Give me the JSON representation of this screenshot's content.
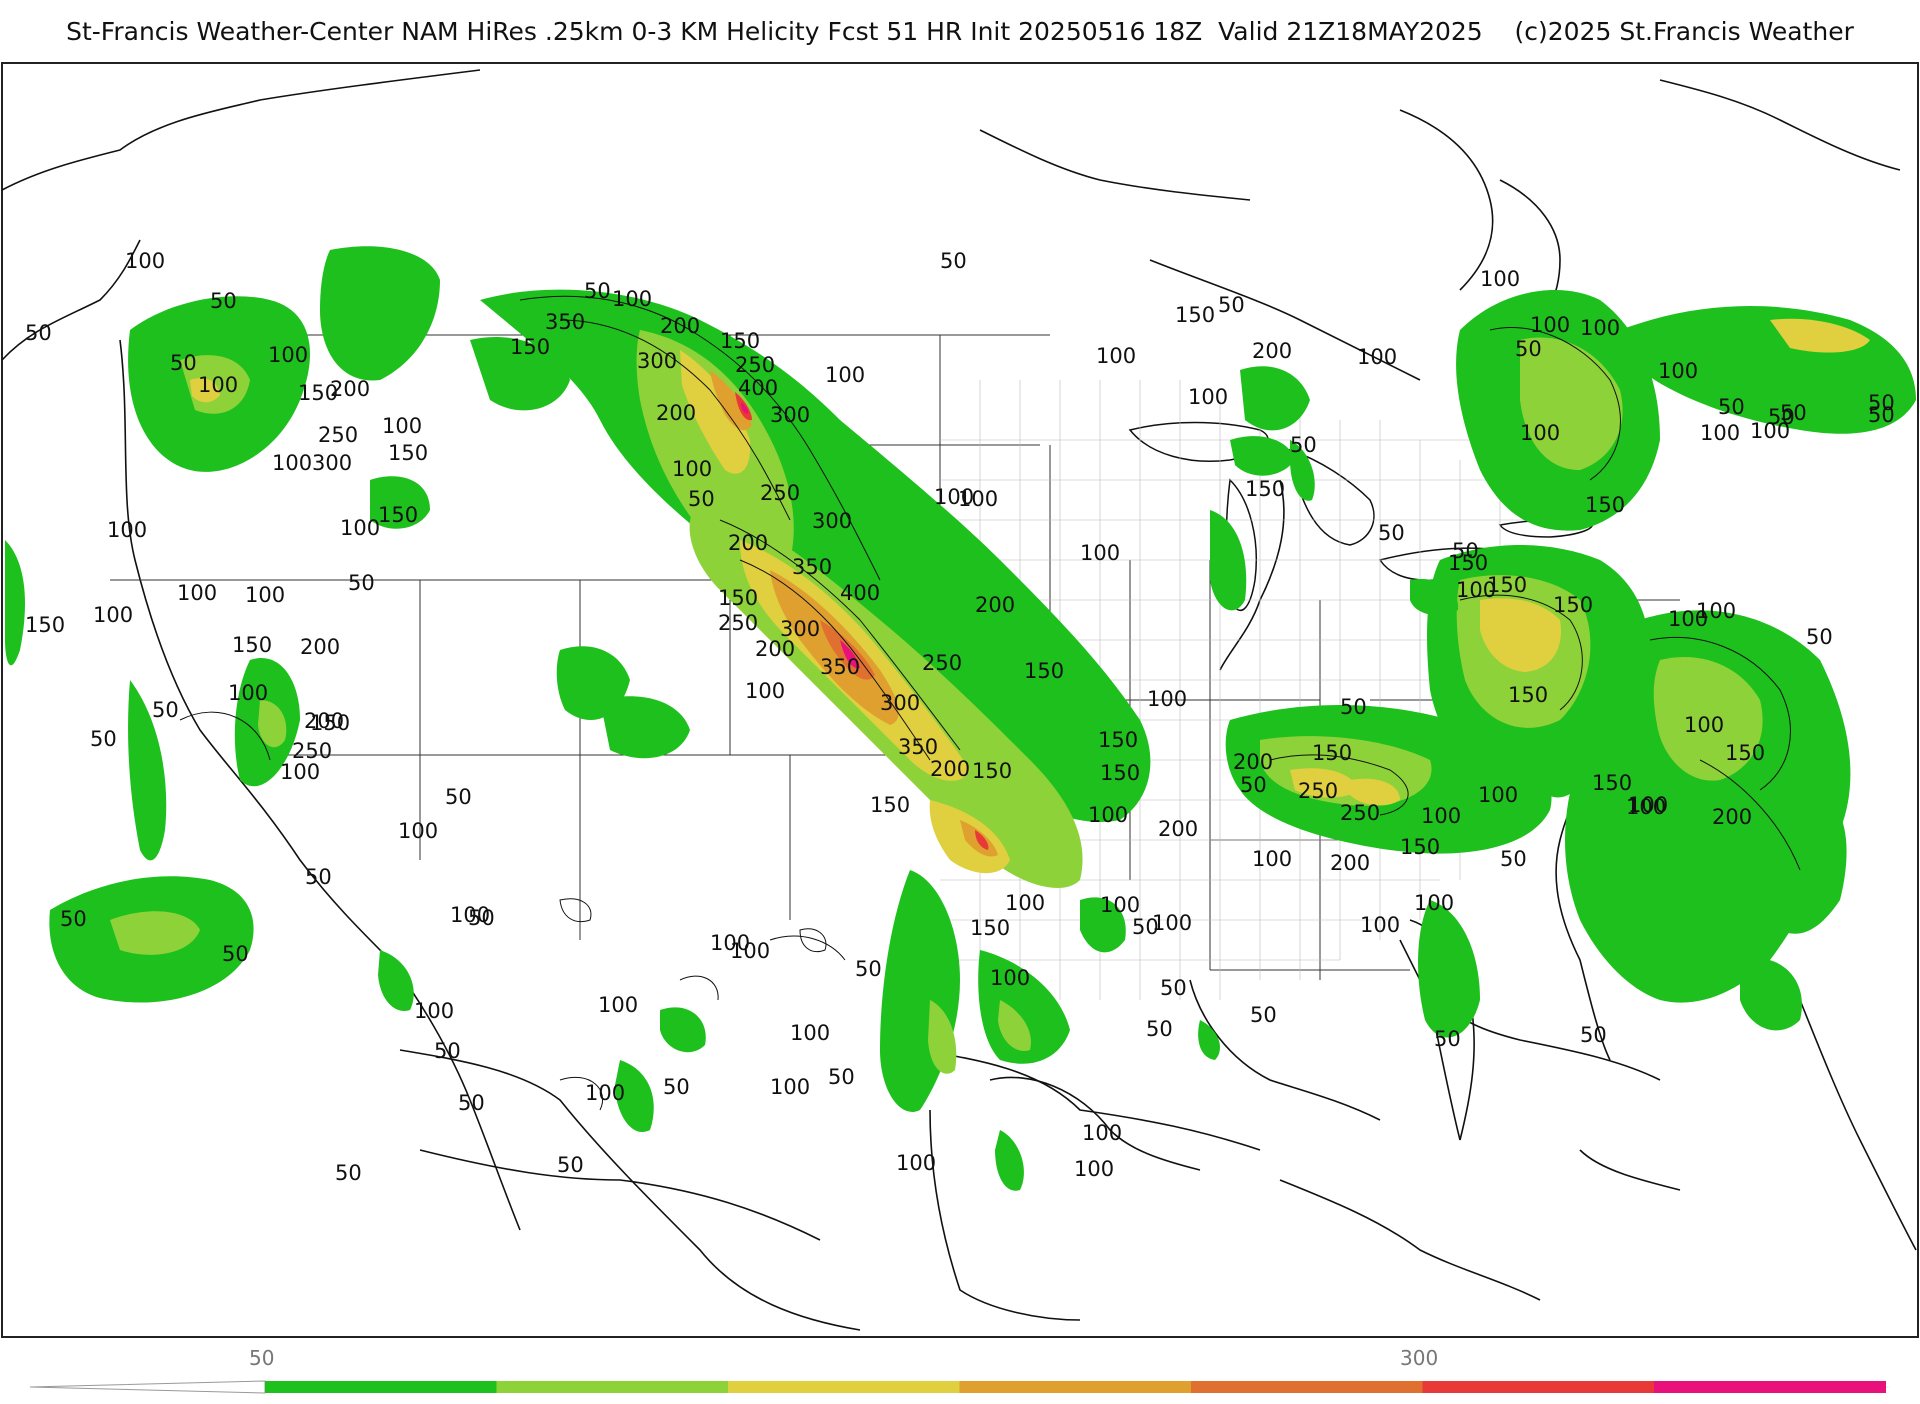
{
  "title": "St-Francis Weather-Center NAM HiRes .25km 0-3 KM Helicity Fcst 51 HR Init 20250516 18Z  Valid 21Z18MAY2025    (c)2025 St.Francis Weather",
  "colorbar": {
    "tick_labels": [
      "50",
      "300"
    ],
    "tick_values": [
      50,
      300
    ],
    "colors": [
      "#ffffff",
      "#1ec01e",
      "#8ed23a",
      "#e0d040",
      "#e0a030",
      "#e07030",
      "#e83838",
      "#e8107a"
    ],
    "bins": [
      0,
      50,
      100,
      150,
      200,
      250,
      300,
      350,
      400
    ]
  },
  "contour_labels": {
    "west": [
      "50",
      "100",
      "50",
      "100",
      "50",
      "100",
      "150",
      "100",
      "150",
      "200",
      "250",
      "300",
      "100",
      "150",
      "100",
      "100",
      "150",
      "100",
      "100",
      "50",
      "150",
      "100",
      "50",
      "150",
      "200",
      "100",
      "250",
      "200",
      "100",
      "50",
      "100",
      "50",
      "50",
      "100",
      "50",
      "50",
      "100",
      "50",
      "50",
      "50",
      "50",
      "50",
      "100",
      "50"
    ],
    "plains": [
      "150",
      "350",
      "100",
      "50",
      "200",
      "300",
      "150",
      "250",
      "100",
      "200",
      "400",
      "300",
      "50",
      "100",
      "250",
      "300",
      "200",
      "350",
      "100",
      "400",
      "150",
      "250",
      "300",
      "200",
      "350",
      "100",
      "250",
      "150",
      "300",
      "350",
      "200",
      "150",
      "100",
      "100",
      "200",
      "150",
      "150",
      "150",
      "100",
      "100",
      "50",
      "100",
      "150",
      "100",
      "100",
      "50",
      "100",
      "100",
      "50",
      "100",
      "100",
      "100",
      "100",
      "100",
      "200",
      "100",
      "50",
      "50",
      "100",
      "50",
      "100",
      "50"
    ],
    "east": [
      "50",
      "100",
      "150",
      "200",
      "100",
      "100",
      "50",
      "50",
      "150",
      "100",
      "50",
      "100",
      "100",
      "50",
      "100",
      "150",
      "50",
      "100",
      "150",
      "100",
      "150",
      "50",
      "150",
      "100",
      "150",
      "50",
      "200",
      "100",
      "150",
      "250",
      "250",
      "100",
      "100",
      "200",
      "150",
      "100",
      "100",
      "50",
      "50",
      "100",
      "100",
      "100",
      "50",
      "50",
      "100",
      "50",
      "100",
      "150",
      "150",
      "200",
      "50",
      "50",
      "50"
    ]
  }
}
